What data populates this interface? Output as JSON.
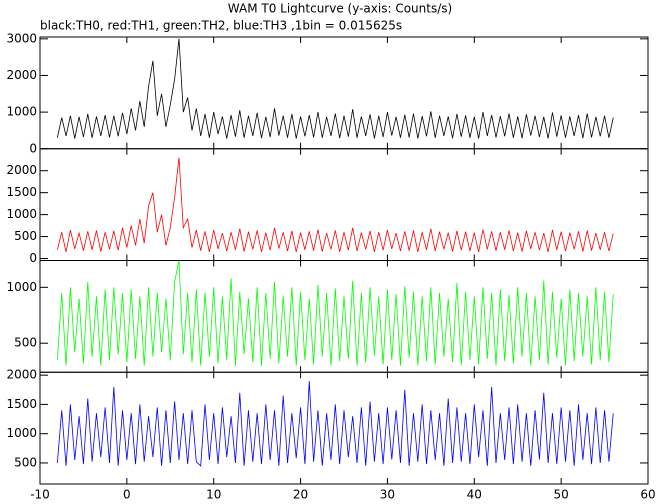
{
  "chart_data": {
    "type": "line",
    "title": "WAM T0 Lightcurve (y-axis: Counts/s)",
    "subtitle": "black:TH0, red:TH1, green:TH2, blue:TH3 ,1bin = 0.015625s",
    "xlim": [
      -10,
      60
    ],
    "xticks": [
      -10,
      0,
      10,
      20,
      30,
      40,
      50,
      60
    ],
    "x": [
      -8,
      -7.5,
      -7,
      -6.5,
      -6,
      -5.5,
      -5,
      -4.5,
      -4,
      -3.5,
      -3,
      -2.5,
      -2,
      -1.5,
      -1,
      -0.5,
      0,
      0.5,
      1,
      1.5,
      2,
      2.5,
      3,
      3.5,
      4,
      4.5,
      5,
      5.5,
      6,
      6.5,
      7,
      7.5,
      8,
      8.5,
      9,
      9.5,
      10,
      10.5,
      11,
      11.5,
      12,
      12.5,
      13,
      13.5,
      14,
      14.5,
      15,
      15.5,
      16,
      16.5,
      17,
      17.5,
      18,
      18.5,
      19,
      19.5,
      20,
      20.5,
      21,
      21.5,
      22,
      22.5,
      23,
      23.5,
      24,
      24.5,
      25,
      25.5,
      26,
      26.5,
      27,
      27.5,
      28,
      28.5,
      29,
      29.5,
      30,
      30.5,
      31,
      31.5,
      32,
      32.5,
      33,
      33.5,
      34,
      34.5,
      35,
      35.5,
      36,
      36.5,
      37,
      37.5,
      38,
      38.5,
      39,
      39.5,
      40,
      40.5,
      41,
      41.5,
      42,
      42.5,
      43,
      43.5,
      44,
      44.5,
      45,
      45.5,
      46,
      46.5,
      47,
      47.5,
      48,
      48.5,
      49,
      49.5,
      50,
      50.5,
      51,
      51.5,
      52,
      52.5,
      53,
      53.5,
      54,
      54.5,
      55,
      55.5,
      56
    ],
    "series": [
      {
        "color": "#000000",
        "ylim": [
          0,
          3050
        ],
        "yticks": [
          0,
          1000,
          2000,
          3000
        ],
        "values": [
          300,
          850,
          350,
          900,
          280,
          870,
          320,
          950,
          300,
          880,
          350,
          920,
          310,
          900,
          340,
          980,
          400,
          1100,
          500,
          1300,
          600,
          1700,
          2400,
          900,
          1500,
          600,
          1200,
          1900,
          3000,
          1000,
          1400,
          500,
          1100,
          350,
          950,
          300,
          1000,
          400,
          880,
          280,
          920,
          330,
          1050,
          300,
          900,
          350,
          980,
          290,
          870,
          320,
          1100,
          360,
          900,
          300,
          950,
          280,
          880,
          340,
          920,
          310,
          1000,
          300,
          870,
          350,
          960,
          290,
          900,
          330,
          1080,
          300,
          880,
          350,
          940,
          280,
          900,
          320,
          1000,
          360,
          870,
          300,
          930,
          310,
          960,
          280,
          890,
          340,
          1020,
          300,
          900,
          350,
          880,
          290,
          950,
          330,
          910,
          300,
          870,
          280,
          1000,
          350,
          920,
          310,
          890,
          340,
          960,
          300,
          880,
          290,
          940,
          360,
          900,
          320,
          870,
          280,
          990,
          330,
          910,
          300,
          880,
          350,
          920,
          290,
          960,
          310,
          870,
          340,
          900,
          300,
          850
        ]
      },
      {
        "color": "#ff0000",
        "ylim": [
          -45,
          2500
        ],
        "yticks": [
          0,
          500,
          1000,
          1500,
          2000
        ],
        "values": [
          200,
          600,
          150,
          650,
          220,
          580,
          180,
          620,
          200,
          640,
          160,
          600,
          210,
          630,
          190,
          700,
          250,
          750,
          300,
          900,
          350,
          1200,
          1500,
          600,
          1000,
          300,
          700,
          1400,
          2300,
          700,
          900,
          250,
          650,
          180,
          620,
          150,
          650,
          220,
          580,
          170,
          600,
          200,
          680,
          160,
          610,
          210,
          640,
          150,
          590,
          190,
          700,
          230,
          600,
          170,
          630,
          150,
          590,
          200,
          620,
          180,
          660,
          160,
          580,
          210,
          640,
          150,
          600,
          190,
          700,
          170,
          590,
          210,
          630,
          150,
          600,
          190,
          650,
          220,
          580,
          170,
          620,
          180,
          640,
          150,
          600,
          200,
          680,
          170,
          610,
          210,
          590,
          160,
          630,
          190,
          610,
          170,
          590,
          150,
          660,
          210,
          620,
          180,
          600,
          200,
          640,
          170,
          590,
          160,
          630,
          220,
          600,
          190,
          580,
          150,
          650,
          200,
          610,
          170,
          590,
          210,
          620,
          160,
          640,
          180,
          580,
          200,
          600,
          170,
          570
        ]
      },
      {
        "color": "#00ff00",
        "ylim": [
          240,
          1240
        ],
        "yticks": [
          500,
          1000
        ],
        "values": [
          350,
          950,
          300,
          1000,
          420,
          900,
          320,
          1050,
          380,
          920,
          300,
          980,
          350,
          1000,
          400,
          950,
          330,
          980,
          360,
          920,
          300,
          1000,
          380,
          950,
          420,
          900,
          350,
          1050,
          1240,
          400,
          950,
          330,
          980,
          300,
          950,
          380,
          1000,
          320,
          920,
          350,
          1080,
          300,
          960,
          400,
          900,
          330,
          1000,
          300,
          950,
          360,
          1050,
          320,
          920,
          380,
          1000,
          300,
          960,
          350,
          900,
          310,
          1020,
          380,
          950,
          300,
          990,
          340,
          920,
          360,
          1060,
          300,
          950,
          330,
          1000,
          390,
          920,
          310,
          980,
          350,
          940,
          300,
          1010,
          370,
          960,
          300,
          920,
          340,
          1000,
          310,
          950,
          380,
          900,
          330,
          1040,
          300,
          960,
          350,
          920,
          310,
          1000,
          360,
          950,
          300,
          980,
          340,
          930,
          320,
          1000,
          380,
          950,
          300,
          920,
          350,
          1060,
          310,
          960,
          370,
          900,
          300,
          980,
          340,
          950,
          380,
          920,
          310,
          1000,
          350,
          960,
          330,
          940
        ]
      },
      {
        "color": "#0000ff",
        "ylim": [
          140,
          2050
        ],
        "yticks": [
          500,
          1000,
          1500,
          2000
        ],
        "values": [
          500,
          1400,
          450,
          1500,
          550,
          1300,
          480,
          1600,
          520,
          1350,
          600,
          1450,
          500,
          1800,
          450,
          1400,
          550,
          1350,
          480,
          1500,
          520,
          1300,
          600,
          1450,
          450,
          1400,
          500,
          1550,
          550,
          1350,
          480,
          1400,
          520,
          450,
          1500,
          550,
          1350,
          480,
          1450,
          600,
          1300,
          500,
          1700,
          450,
          1400,
          520,
          1350,
          480,
          1500,
          550,
          1400,
          450,
          1650,
          500,
          1350,
          580,
          1450,
          480,
          1900,
          520,
          1400,
          450,
          1350,
          550,
          1500,
          480,
          1400,
          600,
          1300,
          500,
          1450,
          450,
          1550,
          520,
          1350,
          480,
          1450,
          560,
          1400,
          500,
          1750,
          450,
          1350,
          520,
          1500,
          480,
          1400,
          550,
          1350,
          450,
          1600,
          500,
          1450,
          520,
          1350,
          480,
          1500,
          600,
          1400,
          450,
          1800,
          500,
          1350,
          550,
          1450,
          480,
          1500,
          520,
          1350,
          450,
          1400,
          560,
          1700,
          500,
          1350,
          480,
          1450,
          520,
          1400,
          450,
          1500,
          550,
          1350,
          480,
          1450,
          500,
          1400,
          520,
          1350
        ]
      }
    ]
  }
}
